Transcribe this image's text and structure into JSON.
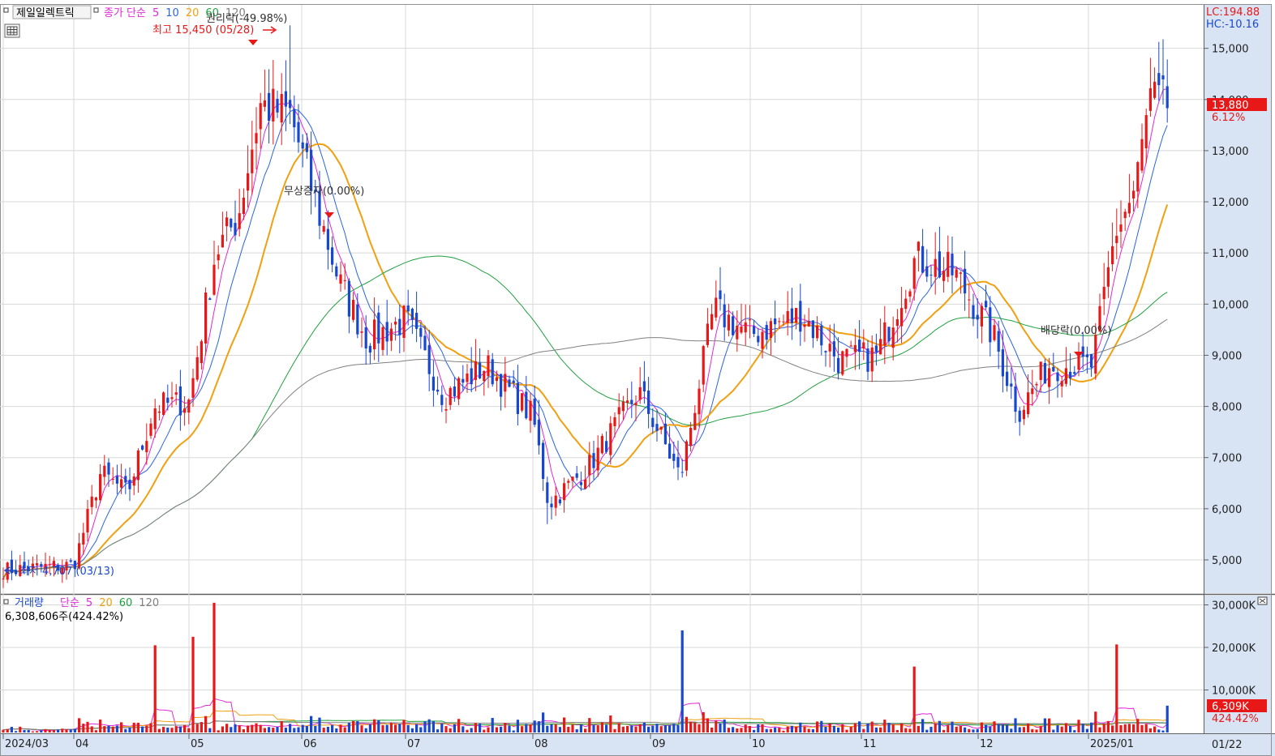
{
  "header": {
    "stock_name": "제일일렉트릭",
    "ma_legend": {
      "prefix": "종가 단순",
      "periods": [
        {
          "label": "5",
          "color": "#e028d8"
        },
        {
          "label": "10",
          "color": "#2a64e0"
        },
        {
          "label": "20",
          "color": "#f0a010"
        },
        {
          "label": "60",
          "color": "#20a040"
        },
        {
          "label": "120",
          "color": "#808080"
        }
      ]
    },
    "lc": "LC:194.88",
    "hc": "HC:-10.16"
  },
  "annotations": {
    "rights_off": "권리락(-49.98%)",
    "high": "최고 15,450 (05/28)",
    "bonus_issue": "무상증자(0.00%)",
    "dividend_off": "배당락(0.00%)",
    "low": "최저 4,707 (03/13)"
  },
  "price_panel": {
    "y_ticks": [
      "15,000",
      "14,000",
      "13,000",
      "12,000",
      "11,000",
      "10,000",
      "9,000",
      "8,000",
      "7,000",
      "6,000",
      "5,000"
    ],
    "y_range": [
      4350,
      15850
    ],
    "current_price": "13,880",
    "current_change": "6.12%"
  },
  "volume_panel": {
    "title": "거래량",
    "ma_prefix": "단순",
    "ma_periods": [
      {
        "label": "5",
        "color": "#e028d8"
      },
      {
        "label": "20",
        "color": "#f0a010"
      },
      {
        "label": "60",
        "color": "#20a040"
      },
      {
        "label": "120",
        "color": "#808080"
      }
    ],
    "readout": "6,308,606주(424.42%)",
    "y_ticks": [
      "30,000K",
      "20,000K",
      "10,000K"
    ],
    "current_volume": "6,309K",
    "current_ratio": "424.42%"
  },
  "x_axis": {
    "labels": [
      "2024/03",
      "04",
      "05",
      "06",
      "07",
      "08",
      "09",
      "10",
      "11",
      "12",
      "2025/01"
    ],
    "right_label": "01/22"
  },
  "colors": {
    "up": "#e81818",
    "down": "#1848d0",
    "grid": "#d8d8d8",
    "axis_bg": "#d8e4f4",
    "ma5": "#e028d8",
    "ma10": "#2a64e0",
    "ma20": "#f0a010",
    "ma60": "#20a040",
    "ma120": "#808080"
  },
  "chart_data": {
    "type": "candlestick",
    "title": "제일일렉트릭",
    "period": "2024/03 – 2025/01",
    "ohlc_waypoints": [
      {
        "date": "2024-03",
        "close": 4800
      },
      {
        "date": "2024-04-01",
        "close": 4900
      },
      {
        "date": "2024-04-08",
        "close": 6700
      },
      {
        "date": "2024-04-15",
        "close": 6300
      },
      {
        "date": "2024-04-22",
        "close": 8000
      },
      {
        "date": "2024-05-01",
        "close": 8100
      },
      {
        "date": "2024-05-08",
        "close": 11000
      },
      {
        "date": "2024-05-14",
        "close": 11700
      },
      {
        "date": "2024-05-20",
        "close": 13900
      },
      {
        "date": "2024-05-28",
        "close": 13700,
        "high": 15450
      },
      {
        "date": "2024-06-05",
        "close": 12000
      },
      {
        "date": "2024-06-12",
        "close": 10400
      },
      {
        "date": "2024-06-20",
        "close": 9300
      },
      {
        "date": "2024-07-01",
        "close": 9700
      },
      {
        "date": "2024-07-10",
        "close": 8200
      },
      {
        "date": "2024-07-20",
        "close": 8800
      },
      {
        "date": "2024-08-01",
        "close": 7800
      },
      {
        "date": "2024-08-05",
        "close": 6100,
        "low": 5700
      },
      {
        "date": "2024-08-15",
        "close": 6800
      },
      {
        "date": "2024-08-28",
        "close": 8300
      },
      {
        "date": "2024-09-05",
        "close": 7300
      },
      {
        "date": "2024-09-10",
        "close": 6600
      },
      {
        "date": "2024-09-20",
        "close": 9900
      },
      {
        "date": "2024-10-01",
        "close": 9400
      },
      {
        "date": "2024-10-15",
        "close": 9800
      },
      {
        "date": "2024-10-25",
        "close": 8900
      },
      {
        "date": "2024-11-05",
        "close": 9000
      },
      {
        "date": "2024-11-15",
        "close": 10900
      },
      {
        "date": "2024-11-25",
        "close": 10600
      },
      {
        "date": "2024-12-05",
        "close": 9400
      },
      {
        "date": "2024-12-12",
        "close": 7900
      },
      {
        "date": "2024-12-20",
        "close": 8800
      },
      {
        "date": "2025-01-02",
        "close": 8800
      },
      {
        "date": "2025-01-08",
        "close": 11400
      },
      {
        "date": "2025-01-13",
        "close": 12200
      },
      {
        "date": "2025-01-17",
        "close": 14000
      },
      {
        "date": "2025-01-22",
        "close": 13880
      }
    ],
    "moving_averages": [
      "5",
      "10",
      "20",
      "60",
      "120"
    ],
    "y_axis_range": [
      4350,
      15850
    ],
    "annotations": [
      "권리락(-49.98%)",
      "최고 15,450 (05/28)",
      "무상증자(0.00%)",
      "배당락(0.00%)",
      "최저 4,707 (03/13)"
    ],
    "volume": {
      "unit": "주",
      "y_axis_range": [
        0,
        32000000
      ],
      "spikes": [
        {
          "date": "2024-04-22",
          "value": 20500000
        },
        {
          "date": "2024-05-02",
          "value": 22500000
        },
        {
          "date": "2024-05-08",
          "value": 30500000
        },
        {
          "date": "2024-09-10",
          "value": 24000000
        },
        {
          "date": "2024-11-15",
          "value": 15500000
        },
        {
          "date": "2025-01-08",
          "value": 20700000
        },
        {
          "date": "2025-01-22",
          "value": 6308606
        }
      ]
    }
  }
}
